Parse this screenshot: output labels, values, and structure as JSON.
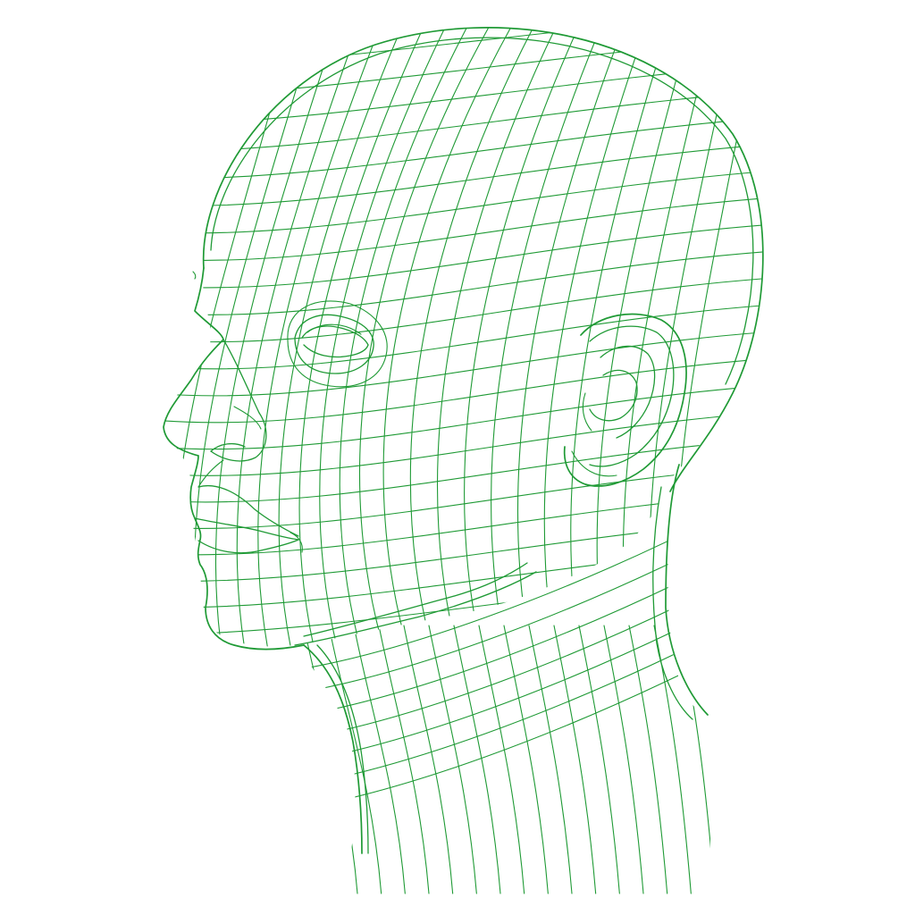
{
  "figure": {
    "subject": "wireframe-human-head",
    "view": "three-quarter-left",
    "line_color": "#1f9a35",
    "background_color": "#ffffff"
  }
}
